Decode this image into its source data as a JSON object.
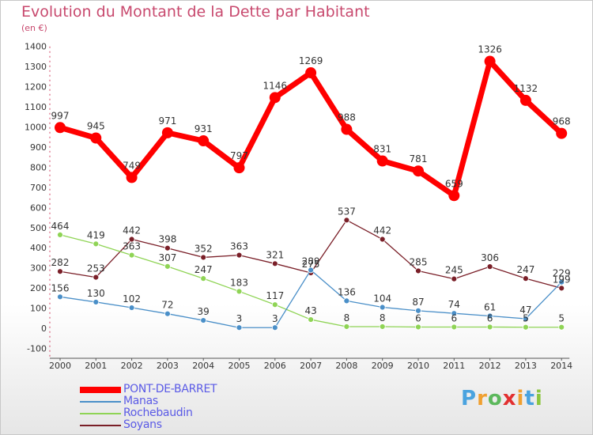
{
  "chart_data": {
    "type": "line",
    "title": "Evolution du Montant de la Dette par Habitant",
    "subtitle": "(en €)",
    "x": [
      "2000",
      "2001",
      "2002",
      "2003",
      "2004",
      "2005",
      "2006",
      "2007",
      "2008",
      "2009",
      "2010",
      "2011",
      "2012",
      "2013",
      "2014"
    ],
    "ylim": [
      -100,
      1400
    ],
    "yticks": [
      -100,
      0,
      100,
      200,
      300,
      400,
      500,
      600,
      700,
      800,
      900,
      1000,
      1100,
      1200,
      1300,
      1400
    ],
    "grid": false,
    "legend": "bottom-left",
    "series": [
      {
        "name": "PONT-DE-BARRET",
        "color": "#ff0000",
        "values": [
          997,
          945,
          749,
          971,
          931,
          797,
          1146,
          1269,
          988,
          831,
          781,
          659,
          1326,
          1132,
          968
        ]
      },
      {
        "name": "Manas",
        "color": "#4a8fc8",
        "values": [
          156,
          130,
          102,
          72,
          39,
          3,
          3,
          289,
          136,
          104,
          87,
          74,
          61,
          47,
          229
        ]
      },
      {
        "name": "Rochebaudin",
        "color": "#8fd455",
        "values": [
          464,
          419,
          363,
          307,
          247,
          183,
          117,
          43,
          8,
          8,
          6,
          6,
          6,
          5,
          5
        ]
      },
      {
        "name": "Soyans",
        "color": "#7a1f28",
        "values": [
          282,
          253,
          442,
          398,
          352,
          363,
          321,
          275,
          537,
          442,
          285,
          245,
          306,
          247,
          199
        ]
      }
    ]
  },
  "logo": {
    "letters": [
      "P",
      "r",
      "o",
      "x",
      "i",
      "t",
      "i"
    ],
    "colors": [
      "#4aa3df",
      "#f0a030",
      "#5cb85c",
      "#e23030",
      "#f0a030",
      "#4aa3df",
      "#8cc63f"
    ]
  }
}
